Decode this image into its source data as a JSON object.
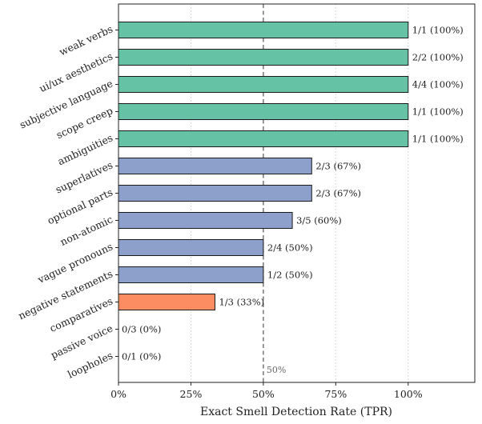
{
  "chart_data": {
    "type": "bar",
    "orientation": "horizontal",
    "title": "",
    "xlabel": "Exact Smell Detection Rate (TPR)",
    "ylabel": "",
    "xlim": [
      0,
      123
    ],
    "xticks": [
      0,
      25,
      50,
      75,
      100
    ],
    "xtick_labels": [
      "0%",
      "25%",
      "50%",
      "75%",
      "100%"
    ],
    "grid": "vertical dotted at x ticks",
    "reference_line": {
      "value": 50,
      "label": "50%",
      "style": "dashed"
    },
    "categories": [
      "weak verbs",
      "ui/ux aesthetics",
      "subjective language",
      "scope creep",
      "ambiguities",
      "superlatives",
      "optional parts",
      "non-atomic",
      "vague pronouns",
      "negative statements",
      "comparatives",
      "passive voice",
      "loopholes"
    ],
    "values": [
      100,
      100,
      100,
      100,
      100,
      66.7,
      66.7,
      60,
      50,
      50,
      33.3,
      0,
      0
    ],
    "bar_labels": [
      "1/1  (100%)",
      "2/2  (100%)",
      "4/4  (100%)",
      "1/1  (100%)",
      "1/1  (100%)",
      "2/3  (67%)",
      "2/3  (67%)",
      "3/5  (60%)",
      "2/4  (50%)",
      "1/2  (50%)",
      "1/3  (33%)",
      "0/3  (0%)",
      "0/1  (0%)"
    ],
    "bar_colors": [
      "#66c2a5",
      "#66c2a5",
      "#66c2a5",
      "#66c2a5",
      "#66c2a5",
      "#8da0cb",
      "#8da0cb",
      "#8da0cb",
      "#8da0cb",
      "#8da0cb",
      "#fc8d62",
      "#fc8d62",
      "#fc8d62"
    ]
  }
}
